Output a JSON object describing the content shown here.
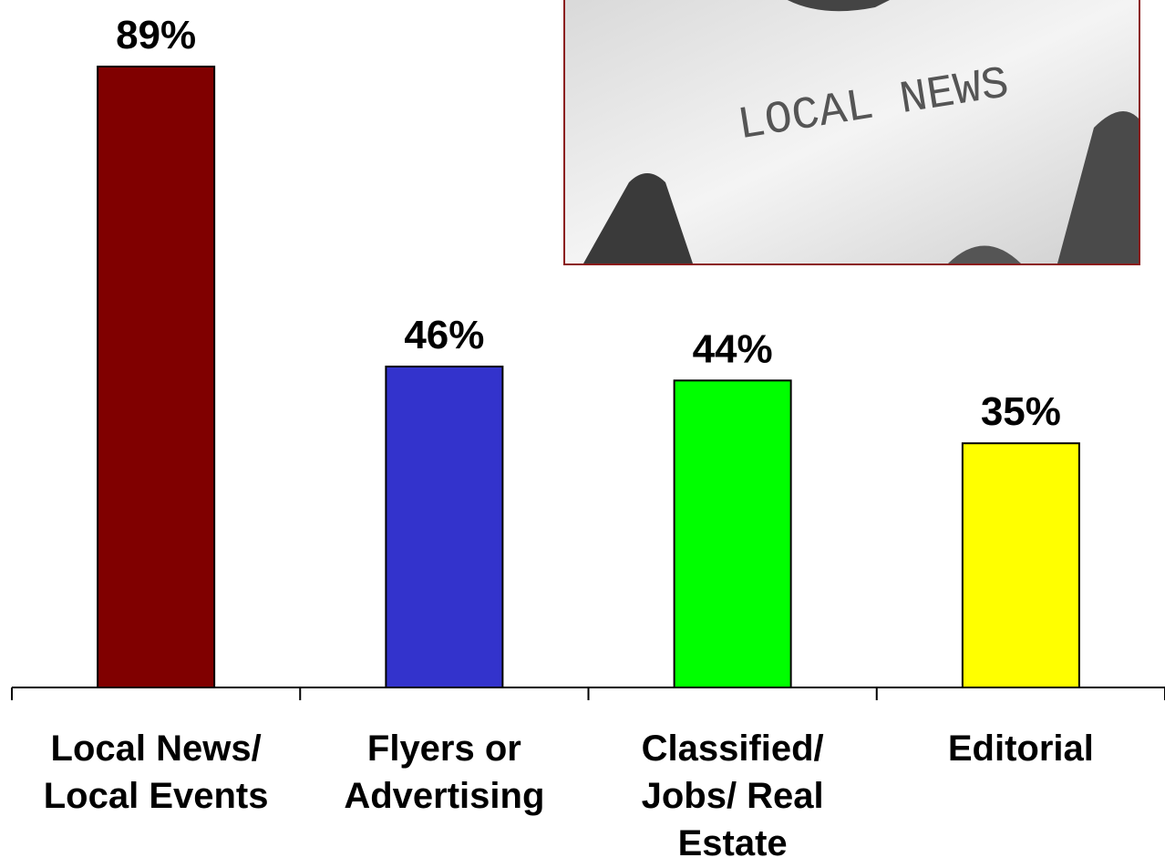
{
  "chart_data": {
    "type": "bar",
    "categories": [
      "Local News/ Local Events",
      "Flyers or Advertising",
      "Classified/ Jobs/ Real Estate",
      "Editorial"
    ],
    "values": [
      89,
      46,
      44,
      35
    ],
    "value_labels": [
      "89%",
      "46%",
      "44%",
      "35%"
    ],
    "colors": [
      "#800000",
      "#3333cc",
      "#00ff00",
      "#ffff00"
    ]
  },
  "photo": {
    "text": "LOCAL NEWS"
  }
}
